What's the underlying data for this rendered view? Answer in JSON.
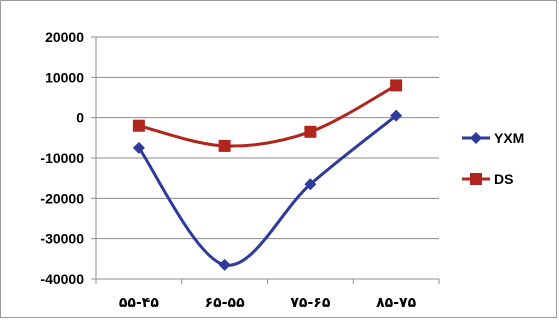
{
  "chart_data": {
    "type": "line",
    "categories": [
      "۵۵-۴۵",
      "۶۵-۵۵",
      "۷۵-۶۵",
      "۸۵-۷۵"
    ],
    "series": [
      {
        "name": "YXM",
        "values": [
          -7500,
          -36500,
          -16500,
          500
        ],
        "color": "#2e3b9a",
        "marker": "diamond"
      },
      {
        "name": "DS",
        "values": [
          -2000,
          -7000,
          -3500,
          8000
        ],
        "color": "#b0251d",
        "marker": "square"
      }
    ],
    "y_ticks": [
      "20000",
      "10000",
      "0",
      "-10000",
      "-20000",
      "-30000",
      "-40000"
    ],
    "ylim": [
      -40000,
      20000
    ],
    "grid": true,
    "legend": "right",
    "smooth": true
  }
}
